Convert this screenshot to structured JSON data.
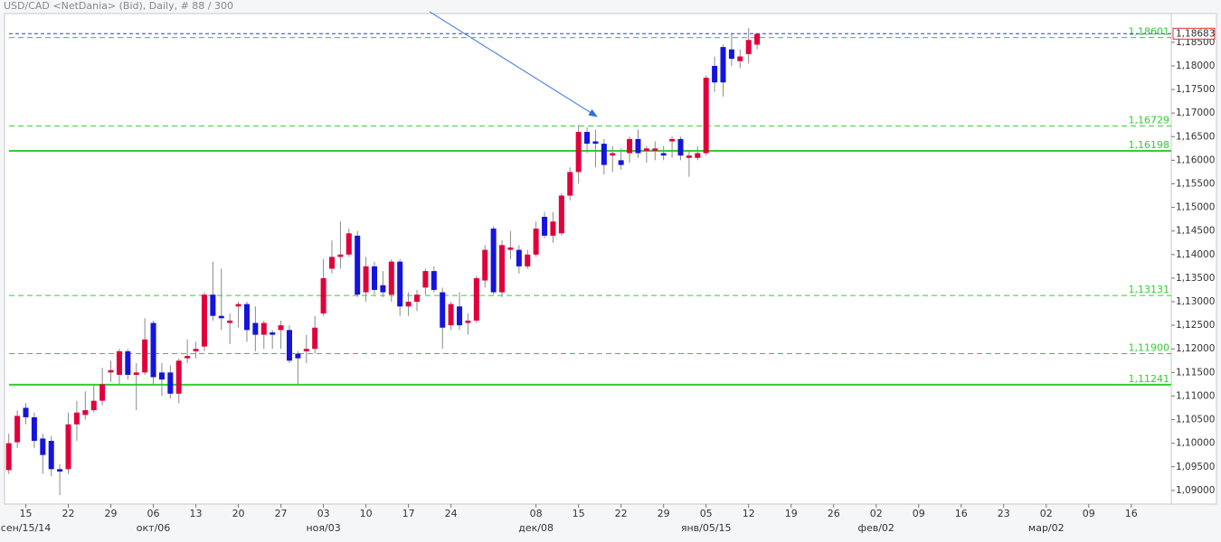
{
  "chart_data": {
    "type": "candlestick",
    "title": "USD/CAD <NetDania> (Bid), Daily, # 88 / 300",
    "up_color": "#e0003c",
    "down_color": "#1414dc",
    "wick_color": "#8a8a8a",
    "open": [
      1.0943,
      1.1002,
      1.1075,
      1.1055,
      1.101,
      1.1005,
      1.0945,
      1.0945,
      1.104,
      1.106,
      1.107,
      1.109,
      1.115,
      1.1145,
      1.1195,
      1.1145,
      1.115,
      1.1255,
      1.115,
      1.115,
      1.1105,
      1.118,
      1.1195,
      1.1205,
      1.1315,
      1.127,
      1.1255,
      1.129,
      1.1295,
      1.1255,
      1.123,
      1.1235,
      1.124,
      1.124,
      1.119,
      1.1195,
      1.12,
      1.1275,
      1.137,
      1.1395,
      1.14,
      1.144,
      1.132,
      1.1375,
      1.1335,
      1.1315,
      1.1385,
      1.129,
      1.13,
      1.133,
      1.1365,
      1.132,
      1.125,
      1.129,
      1.1255,
      1.126,
      1.1345,
      1.1455,
      1.132,
      1.141,
      1.141,
      1.1375,
      1.14,
      1.148,
      1.144,
      1.1445,
      1.1525,
      1.1575,
      1.166,
      1.164,
      1.1635,
      1.161,
      1.16,
      1.1615,
      1.1645,
      1.162,
      1.162,
      1.1615,
      1.164,
      1.1645,
      1.1605,
      1.1605,
      1.1615,
      1.18,
      1.184,
      1.1835,
      1.181,
      1.1825,
      1.1845
    ],
    "high": [
      1.102,
      1.107,
      1.1085,
      1.1065,
      1.102,
      1.1015,
      1.0955,
      1.1065,
      1.109,
      1.111,
      1.1125,
      1.116,
      1.1175,
      1.12,
      1.12,
      1.117,
      1.1265,
      1.126,
      1.117,
      1.1165,
      1.118,
      1.122,
      1.1215,
      1.132,
      1.1385,
      1.137,
      1.1275,
      1.13,
      1.13,
      1.129,
      1.126,
      1.124,
      1.126,
      1.125,
      1.1195,
      1.123,
      1.127,
      1.139,
      1.143,
      1.147,
      1.1455,
      1.145,
      1.1395,
      1.1385,
      1.1365,
      1.139,
      1.139,
      1.132,
      1.1325,
      1.137,
      1.1375,
      1.133,
      1.13,
      1.132,
      1.1275,
      1.1355,
      1.142,
      1.146,
      1.143,
      1.145,
      1.142,
      1.141,
      1.147,
      1.149,
      1.149,
      1.153,
      1.1585,
      1.1675,
      1.167,
      1.1665,
      1.1645,
      1.163,
      1.1625,
      1.165,
      1.1665,
      1.163,
      1.164,
      1.163,
      1.165,
      1.165,
      1.162,
      1.163,
      1.178,
      1.182,
      1.1845,
      1.187,
      1.1835,
      1.188,
      1.187
    ],
    "low": [
      1.0935,
      1.099,
      1.104,
      1.099,
      1.0935,
      1.093,
      1.089,
      1.0935,
      1.1005,
      1.105,
      1.1065,
      1.108,
      1.113,
      1.1125,
      1.1135,
      1.107,
      1.1145,
      1.1125,
      1.11,
      1.1095,
      1.1085,
      1.117,
      1.118,
      1.1195,
      1.126,
      1.124,
      1.121,
      1.1245,
      1.1215,
      1.1195,
      1.12,
      1.12,
      1.12,
      1.117,
      1.1125,
      1.117,
      1.119,
      1.127,
      1.136,
      1.137,
      1.1395,
      1.131,
      1.13,
      1.1315,
      1.131,
      1.13,
      1.127,
      1.127,
      1.128,
      1.1315,
      1.132,
      1.12,
      1.124,
      1.124,
      1.123,
      1.1255,
      1.133,
      1.1315,
      1.131,
      1.139,
      1.136,
      1.137,
      1.1395,
      1.1435,
      1.1425,
      1.144,
      1.1515,
      1.155,
      1.1615,
      1.1585,
      1.157,
      1.1575,
      1.158,
      1.1595,
      1.1605,
      1.1595,
      1.16,
      1.16,
      1.1605,
      1.16,
      1.1565,
      1.16,
      1.161,
      1.1745,
      1.1735,
      1.18,
      1.1795,
      1.1805,
      1.1835
    ],
    "close": [
      1.1,
      1.1058,
      1.1055,
      1.1005,
      1.0975,
      1.0945,
      1.094,
      1.104,
      1.1065,
      1.107,
      1.109,
      1.1125,
      1.1155,
      1.1195,
      1.1145,
      1.115,
      1.122,
      1.114,
      1.1135,
      1.1105,
      1.1175,
      1.1185,
      1.12,
      1.1315,
      1.127,
      1.1265,
      1.126,
      1.1295,
      1.124,
      1.123,
      1.1255,
      1.123,
      1.125,
      1.1175,
      1.118,
      1.12,
      1.1245,
      1.135,
      1.1395,
      1.14,
      1.1445,
      1.1315,
      1.1375,
      1.1325,
      1.132,
      1.1385,
      1.129,
      1.13,
      1.1315,
      1.1365,
      1.1325,
      1.1245,
      1.1295,
      1.125,
      1.126,
      1.135,
      1.141,
      1.132,
      1.142,
      1.1415,
      1.1375,
      1.14,
      1.1455,
      1.144,
      1.147,
      1.1525,
      1.1575,
      1.166,
      1.1635,
      1.1635,
      1.159,
      1.1615,
      1.159,
      1.1645,
      1.1615,
      1.1625,
      1.1625,
      1.161,
      1.1645,
      1.161,
      1.161,
      1.1615,
      1.1775,
      1.1765,
      1.1765,
      1.1815,
      1.182,
      1.1855,
      1.1868
    ],
    "xlim": [
      -0.5,
      136.7
    ],
    "xticks": [
      {
        "value": 2,
        "label": "15"
      },
      {
        "value": 7,
        "label": "22"
      },
      {
        "value": 12,
        "label": "29"
      },
      {
        "value": 17,
        "label": "06"
      },
      {
        "value": 22,
        "label": "13"
      },
      {
        "value": 27,
        "label": "20"
      },
      {
        "value": 32,
        "label": "27"
      },
      {
        "value": 37,
        "label": "03"
      },
      {
        "value": 42,
        "label": "10"
      },
      {
        "value": 47,
        "label": "17"
      },
      {
        "value": 52,
        "label": "24"
      },
      {
        "value": 62,
        "label": "08"
      },
      {
        "value": 67,
        "label": "15"
      },
      {
        "value": 72,
        "label": "22"
      },
      {
        "value": 77,
        "label": "29"
      },
      {
        "value": 82,
        "label": "05"
      },
      {
        "value": 87,
        "label": "12"
      },
      {
        "value": 92,
        "label": "19"
      },
      {
        "value": 97,
        "label": "26"
      },
      {
        "value": 102,
        "label": "02"
      },
      {
        "value": 107,
        "label": "09"
      },
      {
        "value": 112,
        "label": "16"
      },
      {
        "value": 117,
        "label": "23"
      },
      {
        "value": 122,
        "label": "02"
      },
      {
        "value": 127,
        "label": "09"
      },
      {
        "value": 132,
        "label": "16"
      }
    ],
    "month_ticks": [
      {
        "value": 2,
        "label": "сен/15/14"
      },
      {
        "value": 17,
        "label": "окт/06"
      },
      {
        "value": 37,
        "label": "ноя/03"
      },
      {
        "value": 62,
        "label": "дек/08"
      },
      {
        "value": 82,
        "label": "янв/05/15"
      },
      {
        "value": 102,
        "label": "фев/02"
      },
      {
        "value": 122,
        "label": "мар/02"
      }
    ],
    "ylim": [
      1.0871,
      1.1911
    ],
    "yticks": [
      {
        "value": 1.185,
        "label": "1,18500"
      },
      {
        "value": 1.18,
        "label": "1,18000"
      },
      {
        "value": 1.175,
        "label": "1,17500"
      },
      {
        "value": 1.17,
        "label": "1,17000"
      },
      {
        "value": 1.165,
        "label": "1,16500"
      },
      {
        "value": 1.16,
        "label": "1,16000"
      },
      {
        "value": 1.155,
        "label": "1,15500"
      },
      {
        "value": 1.15,
        "label": "1,15000"
      },
      {
        "value": 1.145,
        "label": "1,14500"
      },
      {
        "value": 1.14,
        "label": "1,14000"
      },
      {
        "value": 1.135,
        "label": "1,13500"
      },
      {
        "value": 1.13,
        "label": "1,13000"
      },
      {
        "value": 1.125,
        "label": "1,12500"
      },
      {
        "value": 1.12,
        "label": "1,12000"
      },
      {
        "value": 1.115,
        "label": "1,11500"
      },
      {
        "value": 1.11,
        "label": "1,11000"
      },
      {
        "value": 1.105,
        "label": "1,10500"
      },
      {
        "value": 1.1,
        "label": "1,10000"
      },
      {
        "value": 1.095,
        "label": "1,09500"
      },
      {
        "value": 1.09,
        "label": "1,09000"
      }
    ],
    "level_color": "#33cc33",
    "levels": [
      {
        "value": 1.18601,
        "label": "1,18601",
        "style": "dashed"
      },
      {
        "value": 1.16729,
        "label": "1,16729",
        "style": "dashed"
      },
      {
        "value": 1.16198,
        "label": "1,16198",
        "style": "solid"
      },
      {
        "value": 1.13131,
        "label": "1,13131",
        "style": "dashed"
      },
      {
        "value": 1.119,
        "label": "1,11900",
        "style": "dashed"
      },
      {
        "value": 1.11241,
        "label": "1,11241",
        "style": "solid"
      }
    ],
    "current_price": {
      "value": 1.18683,
      "label": "1,18683",
      "color": "#2a3fd0"
    }
  }
}
